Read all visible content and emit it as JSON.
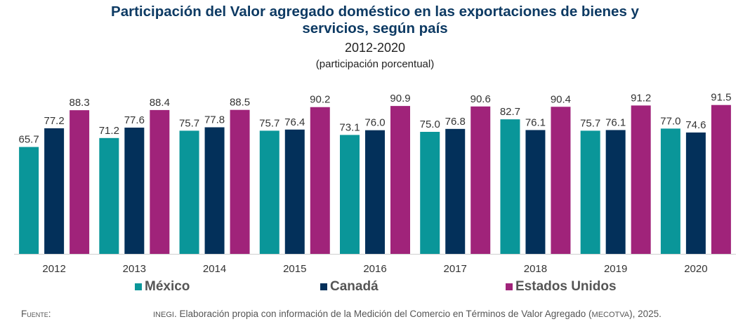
{
  "chart_data": {
    "type": "bar",
    "title": "Participación del Valor agregado doméstico en las exportaciones de bienes y servicios, según país",
    "title_lines": [
      "Participación del Valor agregado doméstico en las exportaciones de bienes y",
      "servicios, según país"
    ],
    "subtitle": "2012-2020",
    "subtitle2": "(participación porcentual)",
    "xlabel": "",
    "ylabel": "",
    "ylim": [
      0,
      100
    ],
    "grid": false,
    "legend_position": "bottom",
    "categories": [
      "2012",
      "2013",
      "2014",
      "2015",
      "2016",
      "2017",
      "2018",
      "2019",
      "2020"
    ],
    "series": [
      {
        "name": "México",
        "color": "#0a9699",
        "values": [
          65.7,
          71.2,
          75.7,
          75.7,
          73.1,
          75.0,
          82.7,
          75.7,
          77.0
        ]
      },
      {
        "name": "Canadá",
        "color": "#03305a",
        "values": [
          77.2,
          77.6,
          77.8,
          76.4,
          76.0,
          76.8,
          76.1,
          76.1,
          74.6
        ]
      },
      {
        "name": "Estados Unidos",
        "color": "#a0237a",
        "values": [
          88.3,
          88.4,
          88.5,
          90.2,
          90.9,
          90.6,
          90.4,
          91.2,
          91.5
        ]
      }
    ]
  },
  "source": {
    "label": "Fuente:",
    "org": "INEGI",
    "text": ". Elaboración propia con información de la Medición del Comercio en Términos de Valor Agregado (",
    "abbr": "MECOTVA",
    "tail": "), 2025."
  }
}
